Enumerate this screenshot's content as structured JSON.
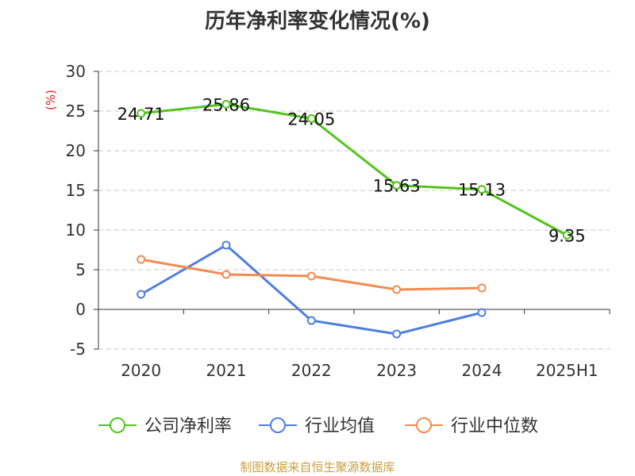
{
  "chart_data": {
    "type": "line",
    "title": "历年净利率变化情况(%)",
    "ylabel": "(%)",
    "categories": [
      "2020",
      "2021",
      "2022",
      "2023",
      "2024",
      "2025H1"
    ],
    "yticks": [
      "30",
      "25",
      "20",
      "15",
      "10",
      "5",
      "0",
      "-5"
    ],
    "ylim": [
      -5,
      30
    ],
    "grid": true,
    "legend_position": "bottom",
    "series": [
      {
        "name": "公司净利率",
        "color": "#52c41a",
        "values": [
          24.71,
          25.86,
          24.05,
          15.63,
          15.13,
          9.35
        ],
        "labels": [
          "24.71",
          "25.86",
          "24.05",
          "15.63",
          "15.13",
          "9.35"
        ]
      },
      {
        "name": "行业均值",
        "color": "#4e7fde",
        "values": [
          1.9,
          8.1,
          -1.4,
          -3.1,
          -0.4,
          null
        ]
      },
      {
        "name": "行业中位数",
        "color": "#f58a52",
        "values": [
          6.3,
          4.4,
          4.2,
          2.5,
          2.7,
          null
        ]
      }
    ]
  },
  "source": "制图数据来自恒生聚源数据库"
}
